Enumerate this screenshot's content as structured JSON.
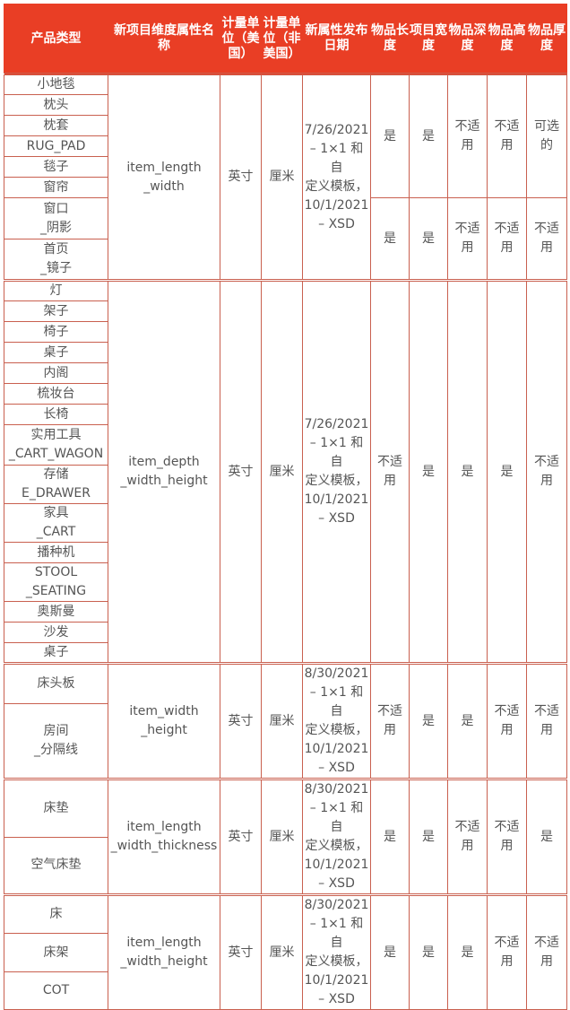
{
  "headers": [
    "产品类型",
    "新项目维度属性名称",
    "计量单位（美国）",
    "计量单位（非美国）",
    "新属性发布日期",
    "物品长度",
    "项目宽度",
    "物品深度",
    "物品高度",
    "物品厚度"
  ],
  "colors": {
    "header_bg": "#e93e25",
    "border": "#c9604f"
  },
  "groups": [
    {
      "products": [
        "小地毯",
        "枕头",
        "枕套",
        "RUG_PAD",
        "毯子",
        "窗帘",
        "窗口\n_阴影",
        "首页\n_镜子"
      ],
      "attribute": "item_length\n_width",
      "unit_us": "英寸",
      "unit_non_us": "厘米",
      "date": "7/26/2021\n– 1×1 和自\n定义模板，\n10/1/2021\n– XSD",
      "subgroups": [
        {
          "rows": 6,
          "values": [
            "是",
            "是",
            "不适\n用",
            "不适\n用",
            "可选\n的"
          ]
        },
        {
          "rows": 2,
          "values": [
            "是",
            "是",
            "不适\n用",
            "不适\n用",
            "不适\n用"
          ]
        }
      ]
    },
    {
      "products": [
        "灯",
        "架子",
        "椅子",
        "桌子",
        "内阁",
        "梳妆台",
        "长椅",
        "实用工具\n_CART_WAGON",
        "存储\nE_DRAWER",
        "家具\n_CART",
        "播种机",
        "STOOL\n_SEATING",
        "奥斯曼",
        "沙发",
        "桌子"
      ],
      "attribute": "item_depth\n_width_height",
      "unit_us": "英寸",
      "unit_non_us": "厘米",
      "date": "7/26/2021\n– 1×1 和自\n定义模板，\n10/1/2021\n– XSD",
      "subgroups": [
        {
          "rows": 15,
          "values": [
            "不适\n用",
            "是",
            "是",
            "是",
            "不适\n用"
          ]
        }
      ]
    },
    {
      "products": [
        "床头板",
        "房间\n_分隔线"
      ],
      "attribute": "item_width\n_height",
      "unit_us": "英寸",
      "unit_non_us": "厘米",
      "date": "8/30/2021\n– 1×1 和自\n定义模板，\n10/1/2021\n– XSD",
      "subgroups": [
        {
          "rows": 2,
          "values": [
            "不适\n用",
            "是",
            "是",
            "不适\n用",
            "不适\n用"
          ]
        }
      ]
    },
    {
      "products": [
        "床垫",
        "空气床垫"
      ],
      "attribute": "item_length\n_width_thickness",
      "unit_us": "英寸",
      "unit_non_us": "厘米",
      "date": "8/30/2021\n– 1×1 和自\n定义模板，\n10/1/2021\n– XSD",
      "subgroups": [
        {
          "rows": 2,
          "values": [
            "是",
            "是",
            "不适\n用",
            "不适\n用",
            "是"
          ]
        }
      ]
    },
    {
      "products": [
        "床",
        "床架",
        "COT"
      ],
      "attribute": "item_length\n_width_height",
      "unit_us": "英寸",
      "unit_non_us": "厘米",
      "date": "8/30/2021\n– 1×1 和自\n定义模板，\n10/1/2021\n– XSD",
      "subgroups": [
        {
          "rows": 3,
          "values": [
            "是",
            "是",
            "是",
            "不适\n用",
            "不适\n用"
          ]
        }
      ]
    }
  ]
}
